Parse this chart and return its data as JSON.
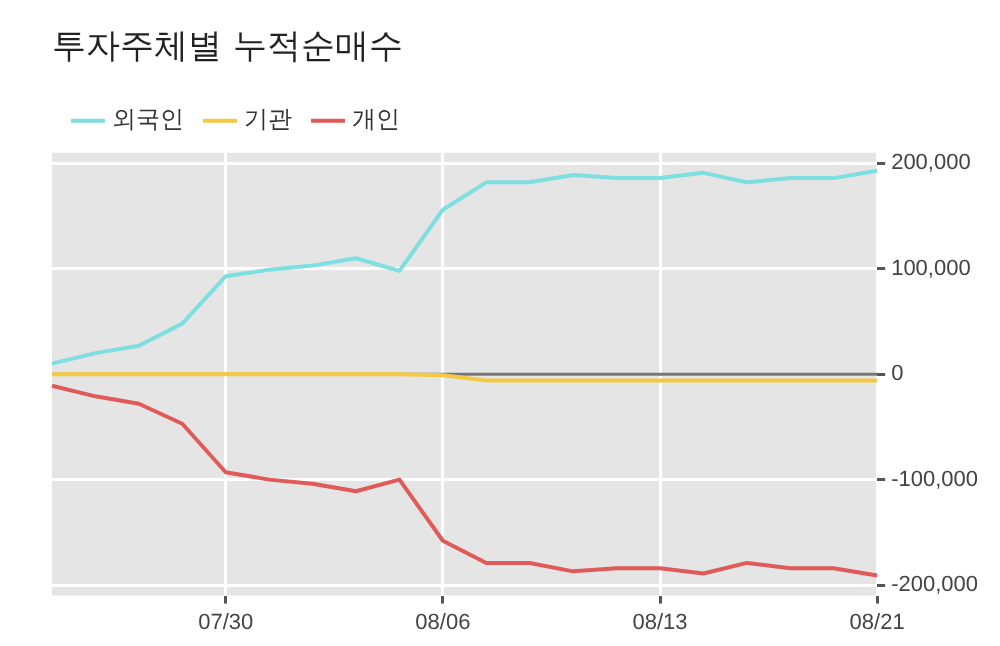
{
  "chart_data": {
    "type": "line",
    "title": "투자주체별 누적순매수",
    "categories": [
      null,
      null,
      null,
      null,
      "07/30",
      null,
      null,
      null,
      null,
      "08/06",
      null,
      null,
      null,
      null,
      "08/13",
      null,
      null,
      null,
      null,
      "08/21"
    ],
    "series": [
      {
        "name": "외국인",
        "color": "#7ddfdf",
        "values": [
          10000,
          20000,
          27000,
          48000,
          93000,
          99000,
          103000,
          110000,
          98000,
          156000,
          182000,
          182000,
          189000,
          186000,
          186000,
          191000,
          182000,
          186000,
          186000,
          193000
        ]
      },
      {
        "name": "기관",
        "color": "#f5c842",
        "values": [
          0,
          0,
          0,
          0,
          0,
          0,
          0,
          0,
          0,
          -1000,
          -6000,
          -6000,
          -6000,
          -6000,
          -6000,
          -6000,
          -6000,
          -6000,
          -6000,
          -6000
        ]
      },
      {
        "name": "개인",
        "color": "#e05a5a",
        "values": [
          -11000,
          -21000,
          -28000,
          -47000,
          -93000,
          -100000,
          -104000,
          -111000,
          -100000,
          -158000,
          -179000,
          -179000,
          -187000,
          -184000,
          -184000,
          -189000,
          -179000,
          -184000,
          -184000,
          -191000
        ]
      }
    ],
    "ylim": [
      -210000,
      210000
    ],
    "yticks": [
      {
        "value": -200000,
        "label": "-200,000"
      },
      {
        "value": -100000,
        "label": "-100,000"
      },
      0,
      {
        "value": 100000,
        "label": "100,000"
      },
      {
        "value": 200000,
        "label": "200,000"
      }
    ],
    "ref_lines": [
      {
        "axis": "y",
        "value": 0,
        "color": "#777777"
      }
    ],
    "grid": true,
    "legend": "top left"
  }
}
